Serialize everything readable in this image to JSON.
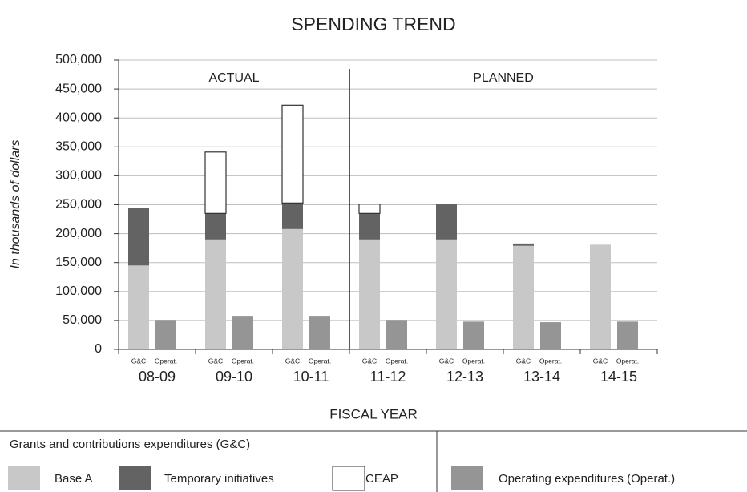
{
  "chart_data": {
    "type": "bar",
    "title": "SPENDING TREND",
    "y_label": "In thousands of dollars",
    "x_label": "FISCAL YEAR",
    "categories": [
      "08-09",
      "09-10",
      "10-11",
      "11-12",
      "12-13",
      "13-14",
      "14-15"
    ],
    "sections": [
      {
        "label": "ACTUAL",
        "start": "08-09"
      },
      {
        "label": "PLANNED",
        "start": "11-12"
      }
    ],
    "legend_title": "Grants and contributions expenditures (G&C)",
    "stacks": [
      {
        "label": "G&C",
        "series": [
          {
            "name": "Base A",
            "color": "#c8c8c8",
            "values": [
              145000,
              190000,
              208000,
              190000,
              190000,
              179000,
              181000
            ]
          },
          {
            "name": "Temporary initiatives",
            "color": "#636363",
            "values": [
              100000,
              45000,
              45000,
              45000,
              62000,
              4000,
              0
            ]
          },
          {
            "name": "CEAP",
            "color": "#ffffff",
            "values": [
              0,
              106000,
              169000,
              16000,
              0,
              0,
              0
            ]
          }
        ]
      },
      {
        "label": "Operat.",
        "series": [
          {
            "name": "Operating expenditures (Operat.)",
            "color": "#959595",
            "values": [
              51000,
              58000,
              58000,
              51000,
              48000,
              47000,
              48000
            ]
          }
        ]
      }
    ],
    "ylim": [
      0,
      500000
    ],
    "yticks": [
      0,
      {
        "value": 50000,
        "label": "50,000"
      },
      {
        "value": 100000,
        "label": "100,000"
      },
      {
        "value": 150000,
        "label": "150,000"
      },
      {
        "value": 200000,
        "label": "200,000"
      },
      {
        "value": 250000,
        "label": "250,000"
      },
      {
        "value": 300000,
        "label": "300,000"
      },
      {
        "value": 350000,
        "label": "350,000"
      },
      {
        "value": 400000,
        "label": "400,000"
      },
      {
        "value": 450000,
        "label": "450,000"
      },
      {
        "value": 500000,
        "label": "500,000"
      }
    ],
    "grid": true
  }
}
